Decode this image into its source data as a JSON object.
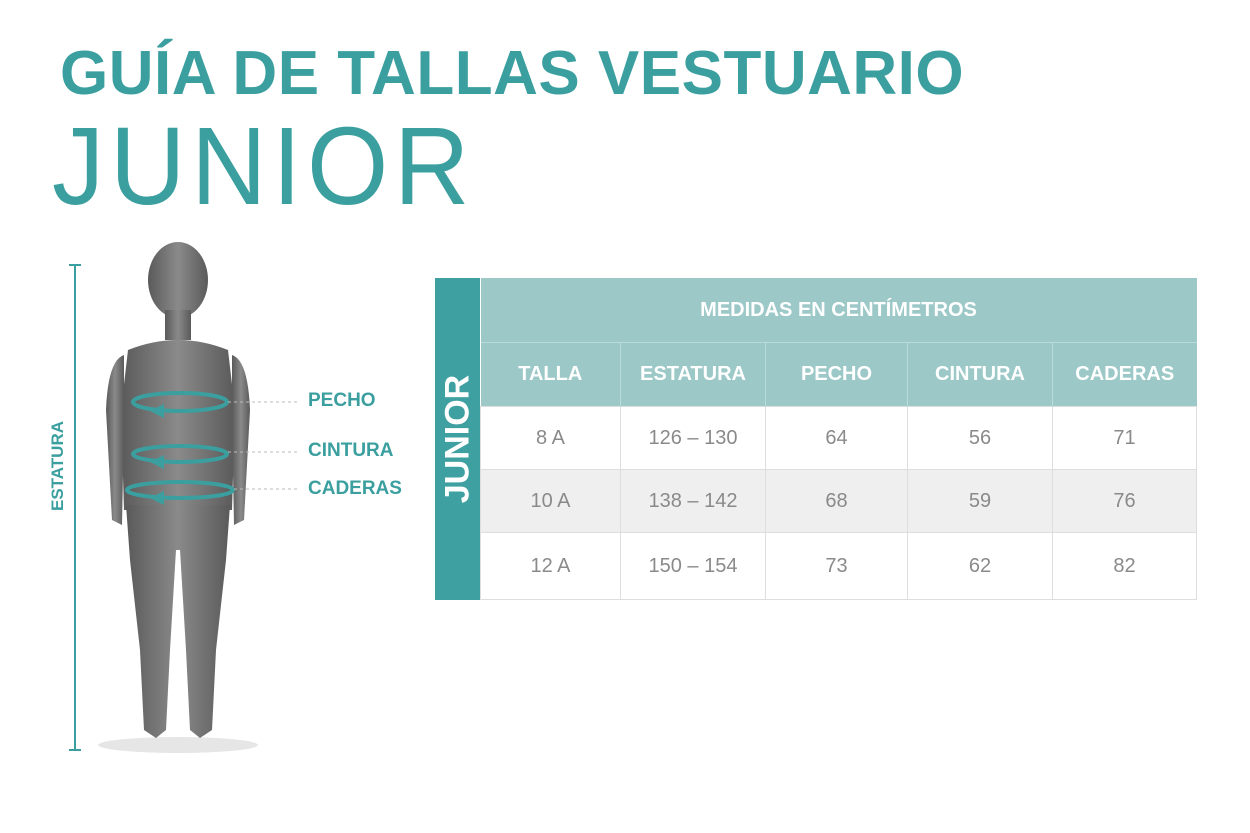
{
  "title": "GUÍA DE TALLAS VESTUARIO",
  "subtitle": "JUNIOR",
  "figure": {
    "height_label": "ESTATURA",
    "labels": [
      "PECHO",
      "CINTURA",
      "CADERAS"
    ]
  },
  "table": {
    "side_label": "JUNIOR",
    "group_header": "MEDIDAS EN CENTÍMETROS",
    "columns": [
      "TALLA",
      "ESTATURA",
      "PECHO",
      "CINTURA",
      "CADERAS"
    ],
    "rows": [
      [
        "8 A",
        "126 – 130",
        "64",
        "56",
        "71"
      ],
      [
        "10 A",
        "138 – 142",
        "68",
        "59",
        "76"
      ],
      [
        "12 A",
        "150 – 154",
        "73",
        "62",
        "82"
      ]
    ]
  },
  "colors": {
    "accent": "#3b9f9f",
    "side": "#3fa0a2",
    "header": "#9cc8c8",
    "alt_row": "#efefef"
  }
}
